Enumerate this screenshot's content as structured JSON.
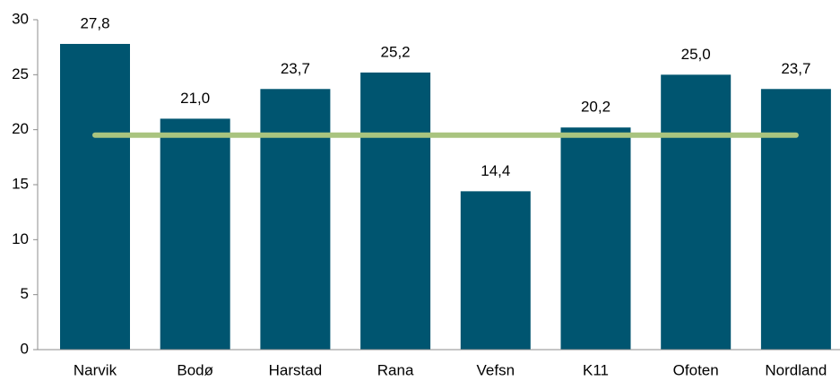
{
  "chart_data": {
    "type": "bar",
    "categories": [
      "Narvik",
      "Bodø",
      "Harstad",
      "Rana",
      "Vefsn",
      "K11",
      "Ofoten",
      "Nordland"
    ],
    "values": [
      27.8,
      21.0,
      23.7,
      25.2,
      14.4,
      20.2,
      25.0,
      23.7
    ],
    "value_labels": [
      "27,8",
      "21,0",
      "23,7",
      "25,2",
      "14,4",
      "20,2",
      "25,0",
      "23,7"
    ],
    "color": "#005570",
    "reference_line": {
      "value": 19.5,
      "color": "#a9c47f"
    },
    "ylim": [
      0,
      30
    ],
    "yticks": [
      0,
      5,
      10,
      15,
      20,
      25,
      30
    ],
    "grid": false
  }
}
